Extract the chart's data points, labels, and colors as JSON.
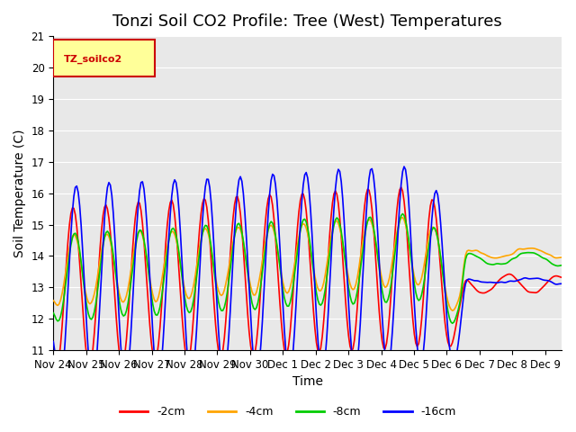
{
  "title": "Tonzi Soil CO2 Profile: Tree (West) Temperatures",
  "xlabel": "Time",
  "ylabel": "Soil Temperature (C)",
  "ylim": [
    11.0,
    21.0
  ],
  "yticks": [
    11.0,
    12.0,
    13.0,
    14.0,
    15.0,
    16.0,
    17.0,
    18.0,
    19.0,
    20.0,
    21.0
  ],
  "xtick_labels": [
    "Nov 24",
    "Nov 25",
    "Nov 26",
    "Nov 27",
    "Nov 28",
    "Nov 29",
    "Nov 30",
    "Dec 1",
    "Dec 2",
    "Dec 3",
    "Dec 4",
    "Dec 5",
    "Dec 6",
    "Dec 7",
    "Dec 8",
    "Dec 9"
  ],
  "colors": {
    "-2cm": "#ff0000",
    "-4cm": "#ffa500",
    "-8cm": "#00cc00",
    "-16cm": "#0000ff"
  },
  "legend_label": "TZ_soilco2",
  "legend_text_color": "#cc0000",
  "legend_bg_color": "#ffff99",
  "legend_edge_color": "#cc0000",
  "background_color": "#e8e8e8",
  "n_points": 360,
  "title_fontsize": 13,
  "axis_label_fontsize": 10,
  "tick_fontsize": 8.5
}
